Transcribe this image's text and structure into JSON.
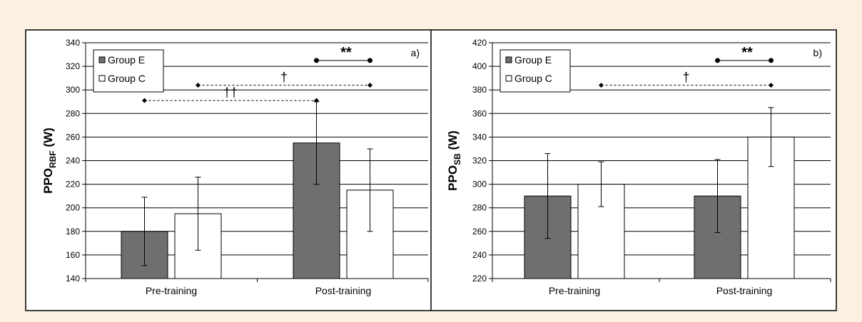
{
  "colors": {
    "page_background": "#fcf0e3",
    "frame": "#000000",
    "gridline": "#000000",
    "group_e_fill": "#6f6f6f",
    "group_c_fill": "#ffffff"
  },
  "chart_data": [
    {
      "type": "bar",
      "panel_label": "a)",
      "categories": [
        "Pre-training",
        "Post-training"
      ],
      "series": [
        {
          "name": "Group E",
          "values": [
            180,
            255
          ],
          "error": [
            29,
            35
          ]
        },
        {
          "name": "Group C",
          "values": [
            195,
            215
          ],
          "error": [
            31,
            35
          ]
        }
      ],
      "ylabel_main": "PPO",
      "ylabel_sub": "RBF",
      "ylabel_unit": " (W)",
      "ylim": [
        140,
        340
      ],
      "yticks": [
        140,
        160,
        180,
        200,
        220,
        240,
        260,
        280,
        300,
        320,
        340
      ],
      "grid": true,
      "legend": "top-left",
      "annotations": [
        {
          "symbol": "**",
          "line": "solid",
          "y": 325,
          "from": [
            1,
            0
          ],
          "to": [
            1,
            1
          ]
        },
        {
          "symbol": "†",
          "line": "dashed",
          "y": 304,
          "from": [
            0,
            1
          ],
          "to": [
            1,
            1
          ]
        },
        {
          "symbol": "††",
          "line": "dashed",
          "y": 291,
          "from": [
            0,
            0
          ],
          "to": [
            1,
            0
          ]
        }
      ]
    },
    {
      "type": "bar",
      "panel_label": "b)",
      "categories": [
        "Pre-training",
        "Post-training"
      ],
      "series": [
        {
          "name": "Group E",
          "values": [
            290,
            290
          ],
          "error": [
            36,
            31
          ]
        },
        {
          "name": "Group C",
          "values": [
            300,
            340
          ],
          "error": [
            19,
            25
          ]
        }
      ],
      "ylabel_main": "PPO",
      "ylabel_sub": "SB",
      "ylabel_unit": " (W)",
      "ylim": [
        220,
        420
      ],
      "yticks": [
        220,
        240,
        260,
        280,
        300,
        320,
        340,
        360,
        380,
        400,
        420
      ],
      "grid": true,
      "legend": "top-left",
      "annotations": [
        {
          "symbol": "**",
          "line": "solid",
          "y": 405,
          "from": [
            1,
            0
          ],
          "to": [
            1,
            1
          ]
        },
        {
          "symbol": "†",
          "line": "dashed",
          "y": 384,
          "from": [
            0,
            1
          ],
          "to": [
            1,
            1
          ]
        }
      ]
    }
  ]
}
